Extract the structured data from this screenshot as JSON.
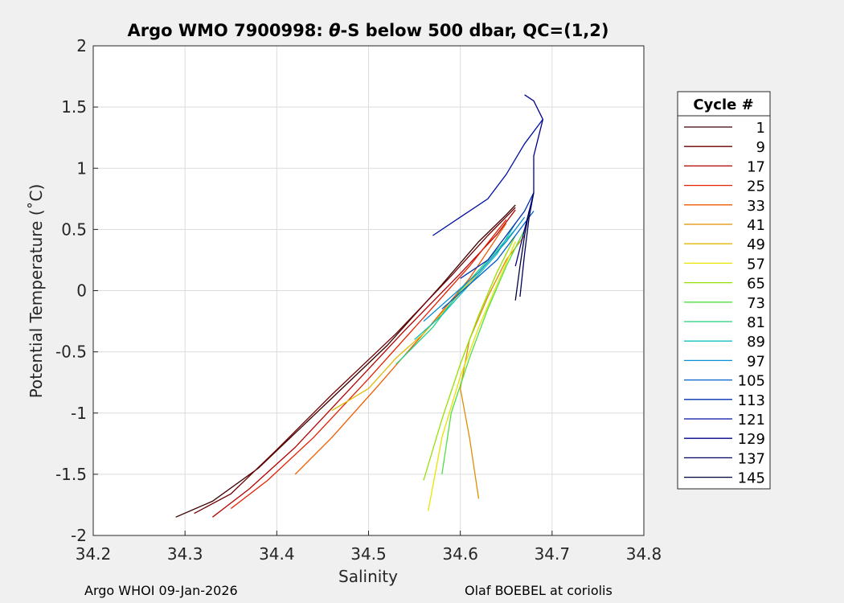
{
  "title_parts": {
    "prefix": "Argo WMO 7900998: ",
    "symbol": "θ",
    "suffix": "-S below 500 dbar,  QC=(1,2)"
  },
  "footer": {
    "left": "Argo WHOI 09-Jan-2026",
    "right": "Olaf BOEBEL at coriolis"
  },
  "chart_data": {
    "type": "line",
    "title": "Argo WMO 7900998: θ-S below 500 dbar,  QC=(1,2)",
    "xlabel": "Salinity",
    "ylabel": "Potential Temperature (˚C)",
    "xlim": [
      34.2,
      34.8
    ],
    "ylim": [
      -2,
      2
    ],
    "xticks": [
      "34.2",
      "34.3",
      "34.4",
      "34.5",
      "34.6",
      "34.7",
      "34.8"
    ],
    "yticks": [
      "2",
      "1.5",
      "1",
      "0.5",
      "0",
      "-0.5",
      "-1",
      "-1.5",
      "-2"
    ],
    "grid": true,
    "legend": {
      "title": "Cycle #",
      "placement": "outside-right",
      "entries": [
        "1",
        "9",
        "17",
        "25",
        "33",
        "41",
        "49",
        "57",
        "65",
        "73",
        "81",
        "89",
        "97",
        "105",
        "113",
        "121",
        "129",
        "137",
        "145"
      ],
      "colors": [
        "#3a0000",
        "#6e0000",
        "#b40000",
        "#e62000",
        "#f05a00",
        "#e08c00",
        "#e0b800",
        "#e6e600",
        "#96e000",
        "#50e040",
        "#20d080",
        "#10c0c0",
        "#0890d8",
        "#0060c8",
        "#0030b0",
        "#0010a0",
        "#000088",
        "#000060",
        "#000038"
      ]
    },
    "series": [
      {
        "name": "1",
        "x": [
          34.29,
          34.33,
          34.38,
          34.45,
          34.52,
          34.58,
          34.62,
          34.65,
          34.66
        ],
        "y": [
          -1.85,
          -1.72,
          -1.45,
          -0.95,
          -0.45,
          0.05,
          0.4,
          0.62,
          0.7
        ]
      },
      {
        "name": "9",
        "x": [
          34.31,
          34.35,
          34.4,
          34.46,
          34.53,
          34.59,
          34.63,
          34.66
        ],
        "y": [
          -1.82,
          -1.66,
          -1.3,
          -0.85,
          -0.35,
          0.12,
          0.45,
          0.68
        ]
      },
      {
        "name": "17",
        "x": [
          34.33,
          34.37,
          34.42,
          34.48,
          34.54,
          34.6,
          34.64,
          34.66
        ],
        "y": [
          -1.85,
          -1.62,
          -1.28,
          -0.8,
          -0.32,
          0.14,
          0.46,
          0.66
        ]
      },
      {
        "name": "25",
        "x": [
          34.35,
          34.39,
          34.44,
          34.5,
          34.56,
          34.61,
          34.65
        ],
        "y": [
          -1.78,
          -1.55,
          -1.2,
          -0.72,
          -0.22,
          0.2,
          0.58
        ]
      },
      {
        "name": "33",
        "x": [
          34.42,
          34.46,
          34.51,
          34.56,
          34.61,
          34.65
        ],
        "y": [
          -1.5,
          -1.2,
          -0.78,
          -0.35,
          0.1,
          0.55
        ]
      },
      {
        "name": "41",
        "x": [
          34.62,
          34.61,
          34.6,
          34.61,
          34.63,
          34.65,
          34.67
        ],
        "y": [
          -1.7,
          -1.2,
          -0.8,
          -0.4,
          -0.05,
          0.25,
          0.45
        ]
      },
      {
        "name": "49",
        "x": [
          34.46,
          34.5,
          34.53,
          34.56,
          34.59,
          34.62,
          34.65
        ],
        "y": [
          -0.98,
          -0.8,
          -0.55,
          -0.35,
          -0.1,
          0.15,
          0.4
        ]
      },
      {
        "name": "57",
        "x": [
          34.565,
          34.58,
          34.6,
          34.62,
          34.64,
          34.66
        ],
        "y": [
          -1.8,
          -1.2,
          -0.7,
          -0.3,
          0.05,
          0.4
        ]
      },
      {
        "name": "65",
        "x": [
          34.56,
          34.58,
          34.6,
          34.62,
          34.64,
          34.66
        ],
        "y": [
          -1.55,
          -1.05,
          -0.6,
          -0.2,
          0.15,
          0.45
        ]
      },
      {
        "name": "73",
        "x": [
          34.58,
          34.59,
          34.61,
          34.63,
          34.65,
          34.67
        ],
        "y": [
          -1.5,
          -1.0,
          -0.55,
          -0.15,
          0.2,
          0.5
        ]
      },
      {
        "name": "81",
        "x": [
          34.53,
          34.57,
          34.6,
          34.63,
          34.66
        ],
        "y": [
          -0.6,
          -0.3,
          0.0,
          0.25,
          0.5
        ]
      },
      {
        "name": "89",
        "x": [
          34.55,
          34.58,
          34.61,
          34.64,
          34.66
        ],
        "y": [
          -0.4,
          -0.2,
          0.05,
          0.3,
          0.55
        ]
      },
      {
        "name": "97",
        "x": [
          34.56,
          34.59,
          34.62,
          34.65,
          34.67
        ],
        "y": [
          -0.25,
          -0.05,
          0.15,
          0.4,
          0.6
        ]
      },
      {
        "name": "105",
        "x": [
          34.58,
          34.61,
          34.64,
          34.66,
          34.68
        ],
        "y": [
          -0.15,
          0.05,
          0.25,
          0.45,
          0.65
        ]
      },
      {
        "name": "113",
        "x": [
          34.6,
          34.63,
          34.65,
          34.67,
          34.68
        ],
        "y": [
          0.1,
          0.25,
          0.45,
          0.65,
          0.8
        ]
      },
      {
        "name": "121",
        "x": [
          34.57,
          34.6,
          34.63,
          34.65,
          34.67,
          34.69
        ],
        "y": [
          0.45,
          0.6,
          0.75,
          0.95,
          1.2,
          1.4
        ]
      },
      {
        "name": "129",
        "x": [
          34.66,
          34.67,
          34.68,
          34.68,
          34.69,
          34.68,
          34.67
        ],
        "y": [
          0.2,
          0.5,
          0.8,
          1.1,
          1.4,
          1.55,
          1.6
        ]
      },
      {
        "name": "137",
        "x": [
          34.665,
          34.67,
          34.675,
          34.68
        ],
        "y": [
          -0.05,
          0.3,
          0.6,
          0.8
        ]
      },
      {
        "name": "145",
        "x": [
          34.66,
          34.665,
          34.67,
          34.675
        ],
        "y": [
          -0.08,
          0.2,
          0.45,
          0.65
        ]
      }
    ]
  }
}
